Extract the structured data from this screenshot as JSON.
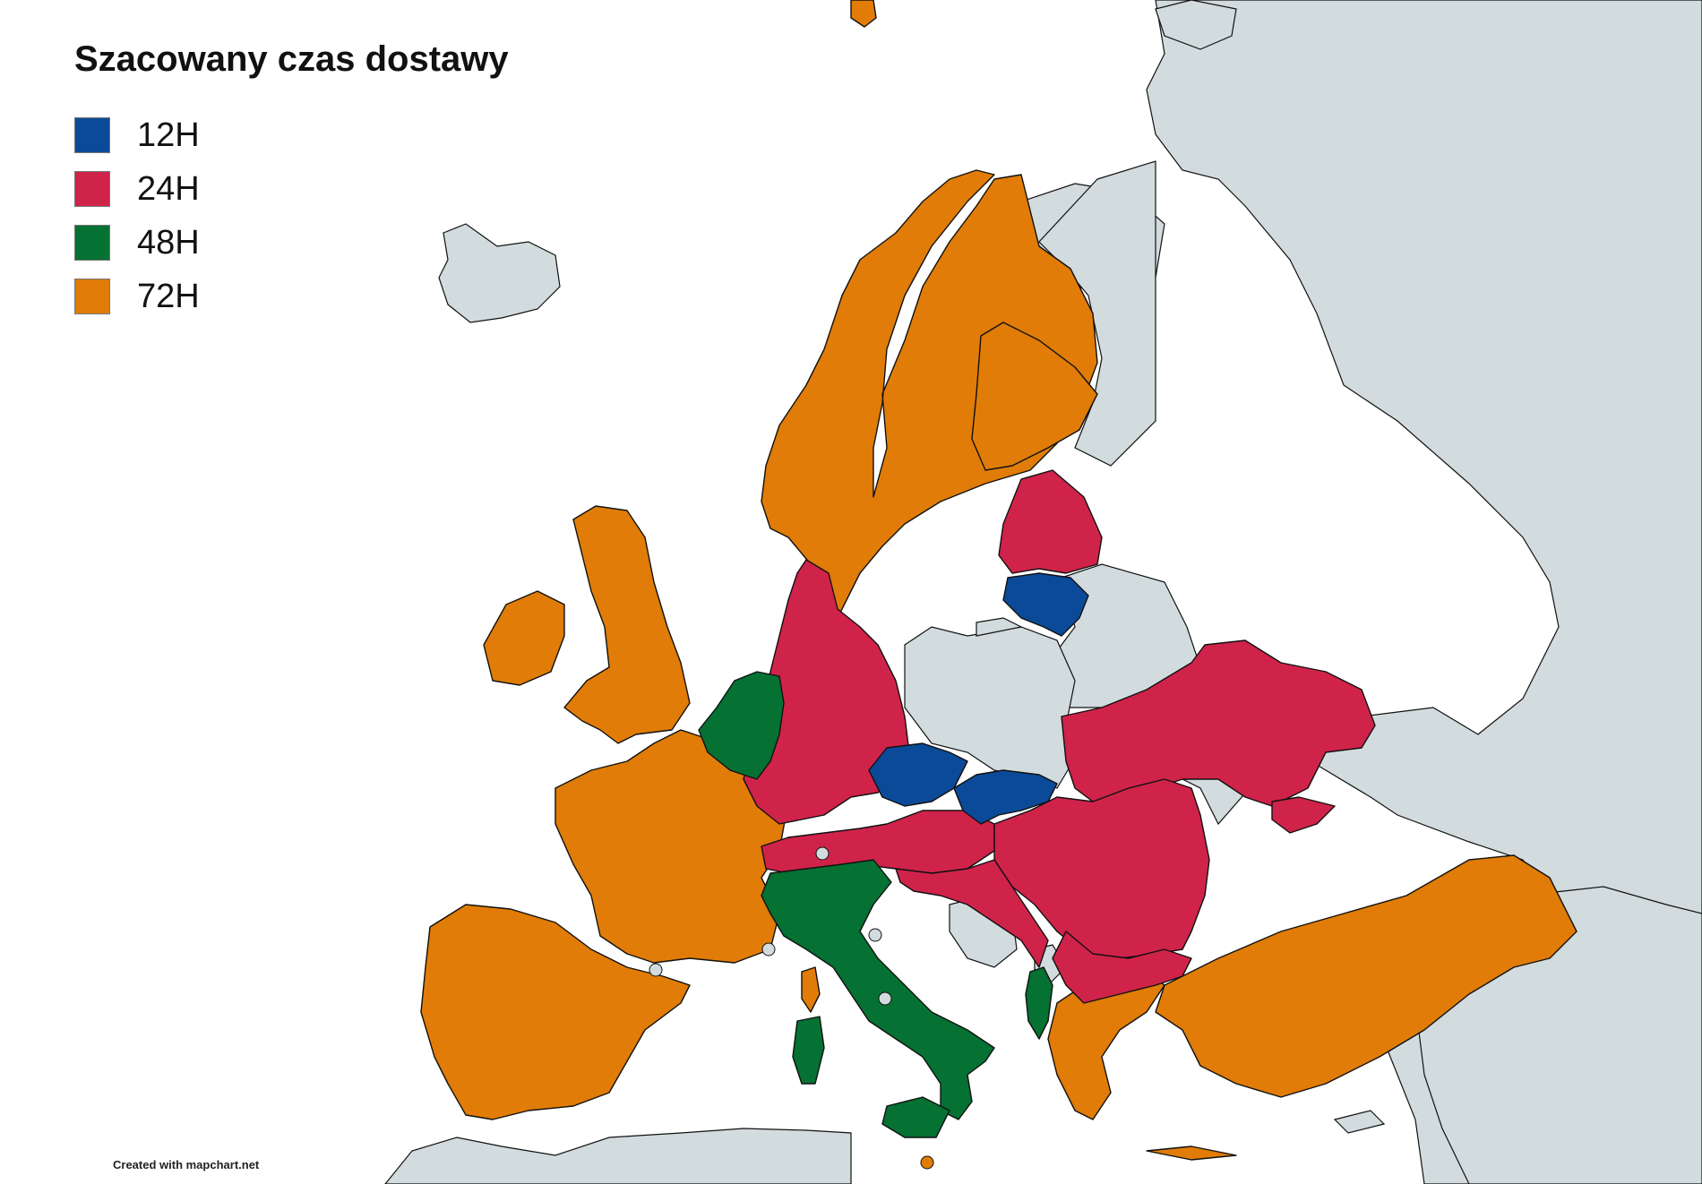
{
  "legend": {
    "title": "Szacowany czas dostawy",
    "items": [
      {
        "label": "12H",
        "color": "#0b4a98"
      },
      {
        "label": "24H",
        "color": "#d0234a"
      },
      {
        "label": "48H",
        "color": "#057132"
      },
      {
        "label": "72H",
        "color": "#e07c07"
      }
    ]
  },
  "credit": "Created with mapchart.net",
  "colors": {
    "sea": "#ffffff",
    "other_land": "#d2dbdd",
    "border": "#111111"
  },
  "regions": {
    "12H": [
      "Lithuania",
      "Czechia",
      "Slovakia"
    ],
    "24H": [
      "Denmark",
      "Germany",
      "Austria",
      "Switzerland",
      "Poland-adjacent east (Ukraine)",
      "Hungary",
      "Romania",
      "Latvia",
      "Estonia",
      "Slovenia",
      "Croatia",
      "Serbia",
      "Bulgaria",
      "Moldova"
    ],
    "48H": [
      "Netherlands",
      "Belgium",
      "Luxembourg",
      "Italy",
      "Sardinia",
      "Sicily",
      "Albania"
    ],
    "72H": [
      "Norway",
      "Sweden",
      "Finland",
      "Ireland",
      "United Kingdom",
      "France",
      "Spain",
      "Portugal",
      "Greece",
      "Turkey",
      "Corsica"
    ]
  }
}
